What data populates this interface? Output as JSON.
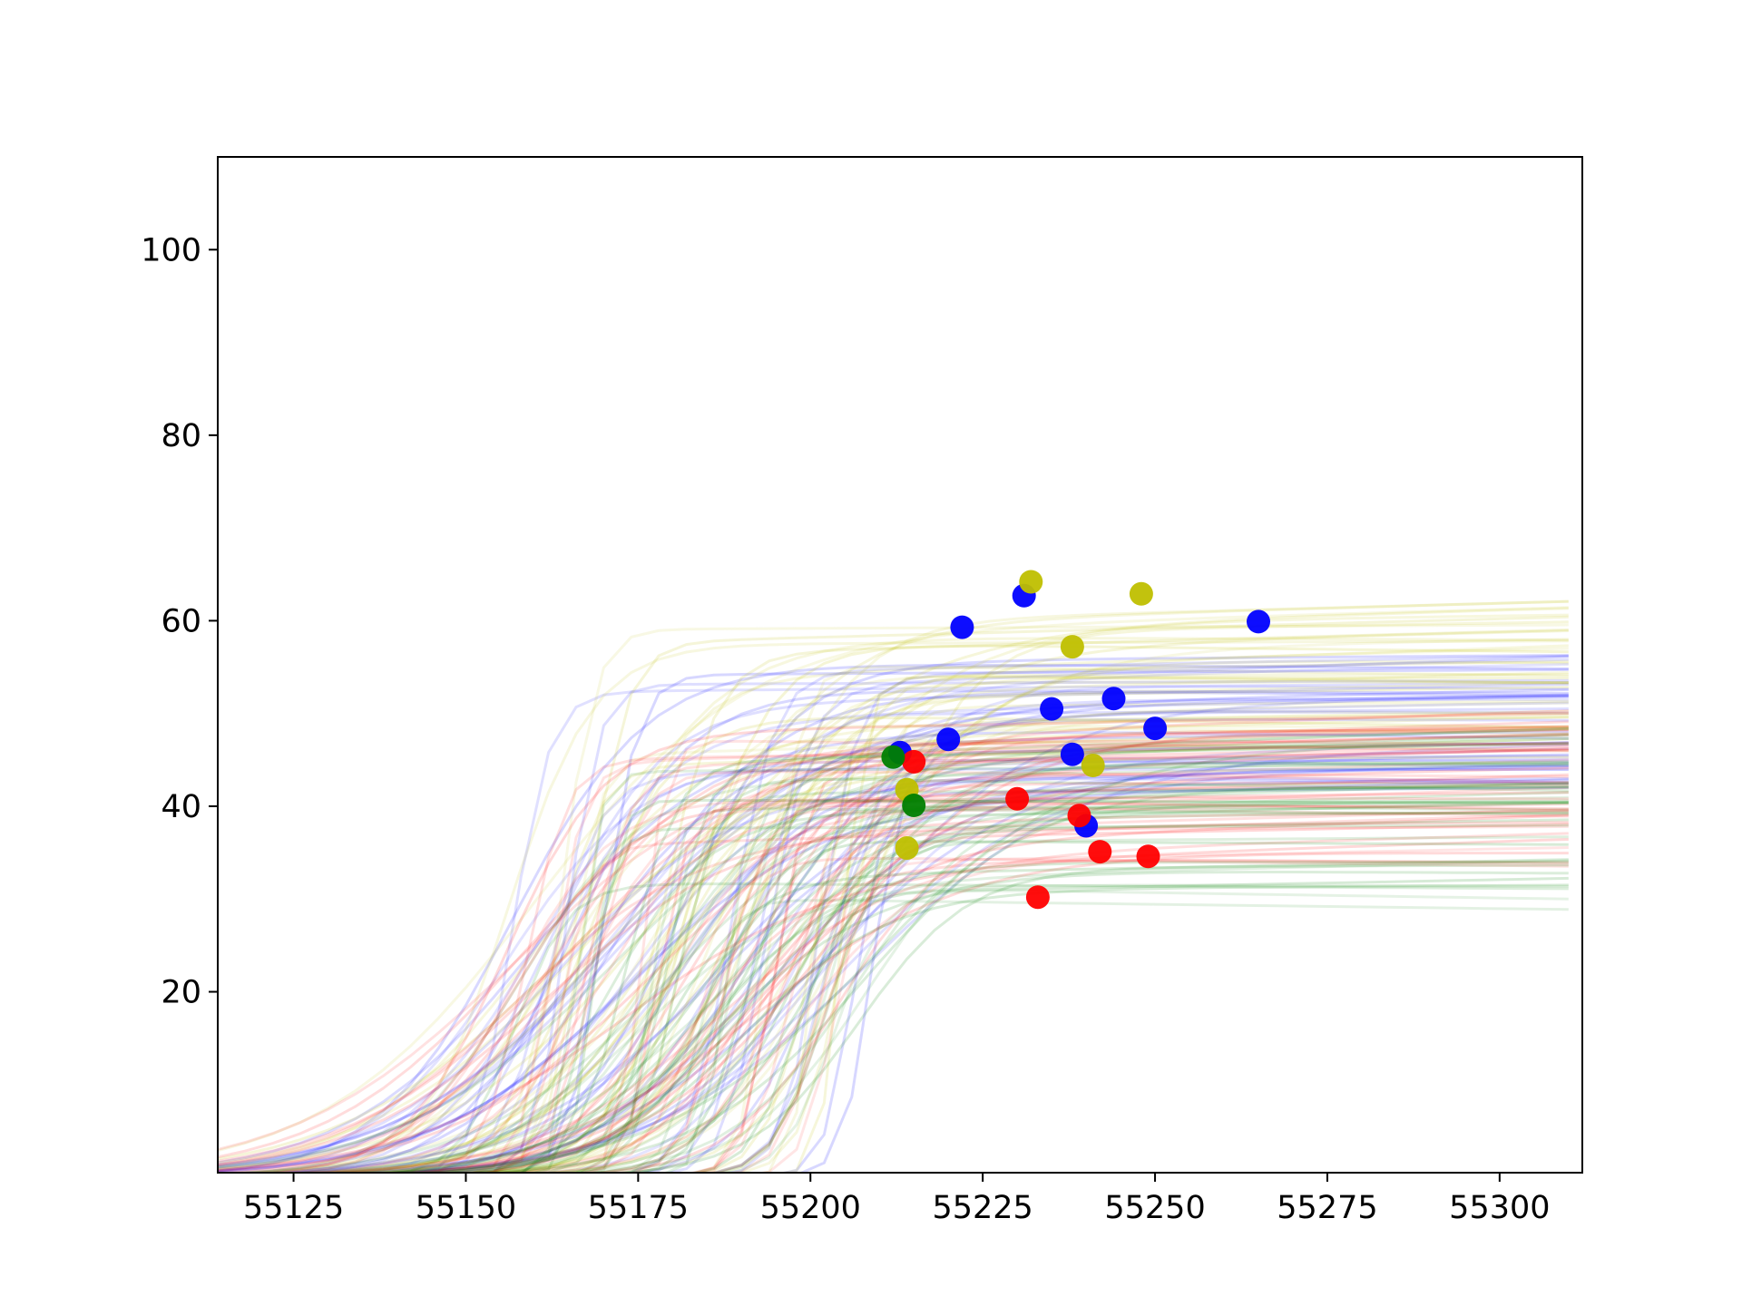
{
  "chart_data": {
    "type": "scatter",
    "title": "",
    "xlabel": "",
    "ylabel": "",
    "xlim": [
      55114,
      55312
    ],
    "ylim": [
      0.5,
      110
    ],
    "x_ticks": [
      55125,
      55150,
      55175,
      55200,
      55225,
      55250,
      55275,
      55300
    ],
    "y_ticks": [
      20,
      40,
      60,
      80,
      100
    ],
    "grid": false,
    "legend": "none",
    "series": [
      {
        "color": "#0000ff",
        "marker": "circle",
        "points": [
          [
            55213,
            45.8
          ],
          [
            55220,
            47.2
          ],
          [
            55222,
            59.3
          ],
          [
            55231,
            62.7
          ],
          [
            55235,
            50.5
          ],
          [
            55238,
            45.6
          ],
          [
            55240,
            37.9
          ],
          [
            55244,
            51.6
          ],
          [
            55250,
            48.4
          ],
          [
            55265,
            59.9
          ]
        ]
      },
      {
        "color": "#bfbf00",
        "marker": "circle",
        "points": [
          [
            55214,
            35.5
          ],
          [
            55214,
            41.8
          ],
          [
            55232,
            64.2
          ],
          [
            55238,
            57.2
          ],
          [
            55241,
            44.4
          ],
          [
            55248,
            62.9
          ]
        ]
      },
      {
        "color": "#ff0000",
        "marker": "circle",
        "points": [
          [
            55215,
            44.8
          ],
          [
            55230,
            40.8
          ],
          [
            55233,
            30.2
          ],
          [
            55239,
            39.0
          ],
          [
            55242,
            35.1
          ],
          [
            55249,
            34.6
          ]
        ]
      },
      {
        "color": "#008000",
        "marker": "circle",
        "points": [
          [
            55212,
            45.3
          ],
          [
            55215,
            40.1
          ]
        ]
      }
    ],
    "model_curves": {
      "style": "many semi-transparent sigmoid-shaped light-curve fits",
      "colors": [
        "#0000ff",
        "#bfbf00",
        "#ff0000",
        "#008000"
      ]
    }
  }
}
